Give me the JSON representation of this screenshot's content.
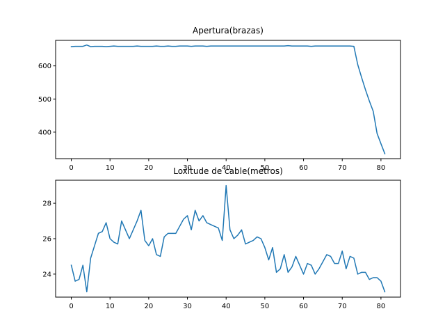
{
  "colors": {
    "line": "#1f77b4",
    "axes": "#000000",
    "background": "#ffffff"
  },
  "chart_data": [
    {
      "type": "line",
      "title": "Apertura(brazas)",
      "xlabel": "",
      "ylabel": "",
      "xlim": [
        -4.05,
        85.05
      ],
      "ylim": [
        320,
        677
      ],
      "xticks": [
        0,
        10,
        20,
        30,
        40,
        50,
        60,
        70,
        80
      ],
      "yticks": [
        400,
        500,
        600
      ],
      "grid": false,
      "series": [
        {
          "x": [
            0,
            1,
            2,
            3,
            4,
            5,
            6,
            7,
            8,
            9,
            10,
            11,
            12,
            13,
            14,
            15,
            16,
            17,
            18,
            19,
            20,
            21,
            22,
            23,
            24,
            25,
            26,
            27,
            28,
            29,
            30,
            31,
            32,
            33,
            34,
            35,
            36,
            37,
            38,
            39,
            40,
            41,
            42,
            43,
            44,
            45,
            46,
            47,
            48,
            49,
            50,
            51,
            52,
            53,
            54,
            55,
            56,
            57,
            58,
            59,
            60,
            61,
            62,
            63,
            64,
            65,
            66,
            67,
            68,
            69,
            70,
            71,
            72,
            73,
            74,
            75,
            76,
            77,
            78,
            79,
            80,
            81
          ],
          "values": [
            658,
            659,
            659,
            659,
            663,
            658,
            659,
            659,
            659,
            658,
            659,
            660,
            659,
            659,
            659,
            659,
            659,
            660,
            659,
            659,
            659,
            659,
            660,
            659,
            659,
            660,
            659,
            659,
            660,
            660,
            660,
            659,
            660,
            660,
            660,
            659,
            660,
            660,
            660,
            660,
            660,
            660,
            660,
            660,
            660,
            660,
            660,
            660,
            660,
            660,
            660,
            660,
            660,
            660,
            660,
            660,
            661,
            660,
            660,
            660,
            660,
            660,
            659,
            660,
            660,
            660,
            660,
            660,
            660,
            660,
            660,
            660,
            660,
            659,
            604,
            565,
            528,
            494,
            463,
            396,
            365,
            335
          ]
        }
      ]
    },
    {
      "type": "line",
      "title": "Loxitude de cable(metros)",
      "xlabel": "",
      "ylabel": "",
      "xlim": [
        -4.05,
        85.05
      ],
      "ylim": [
        22.7,
        29.3
      ],
      "xticks": [
        0,
        10,
        20,
        30,
        40,
        50,
        60,
        70,
        80
      ],
      "yticks": [
        24,
        26,
        28
      ],
      "grid": false,
      "series": [
        {
          "x": [
            0,
            1,
            2,
            3,
            4,
            5,
            6,
            7,
            8,
            9,
            10,
            11,
            12,
            13,
            14,
            15,
            16,
            17,
            18,
            19,
            20,
            21,
            22,
            23,
            24,
            25,
            26,
            27,
            28,
            29,
            30,
            31,
            32,
            33,
            34,
            35,
            36,
            37,
            38,
            39,
            40,
            41,
            42,
            43,
            44,
            45,
            46,
            47,
            48,
            49,
            50,
            51,
            52,
            53,
            54,
            55,
            56,
            57,
            58,
            59,
            60,
            61,
            62,
            63,
            64,
            65,
            66,
            67,
            68,
            69,
            70,
            71,
            72,
            73,
            74,
            75,
            76,
            77,
            78,
            79,
            80,
            81
          ],
          "values": [
            24.5,
            23.6,
            23.7,
            24.5,
            23.0,
            24.9,
            25.6,
            26.3,
            26.4,
            26.9,
            26.0,
            25.8,
            25.7,
            27.0,
            26.5,
            26.0,
            26.5,
            27.0,
            27.6,
            25.9,
            25.6,
            26.0,
            25.1,
            25.0,
            26.1,
            26.3,
            26.3,
            26.3,
            26.7,
            27.1,
            27.3,
            26.5,
            27.6,
            27.0,
            27.3,
            26.9,
            26.8,
            26.7,
            26.6,
            25.9,
            29.0,
            26.5,
            26.0,
            26.2,
            26.5,
            25.7,
            25.8,
            25.9,
            26.1,
            26.0,
            25.5,
            24.8,
            25.5,
            24.1,
            24.3,
            25.1,
            24.1,
            24.4,
            25.0,
            24.5,
            24.0,
            24.6,
            24.5,
            24.0,
            24.3,
            24.7,
            25.1,
            25.0,
            24.6,
            24.6,
            25.3,
            24.3,
            25.0,
            24.9,
            24.0,
            24.1,
            24.1,
            23.7,
            23.8,
            23.8,
            23.6,
            23.0
          ]
        }
      ]
    }
  ]
}
